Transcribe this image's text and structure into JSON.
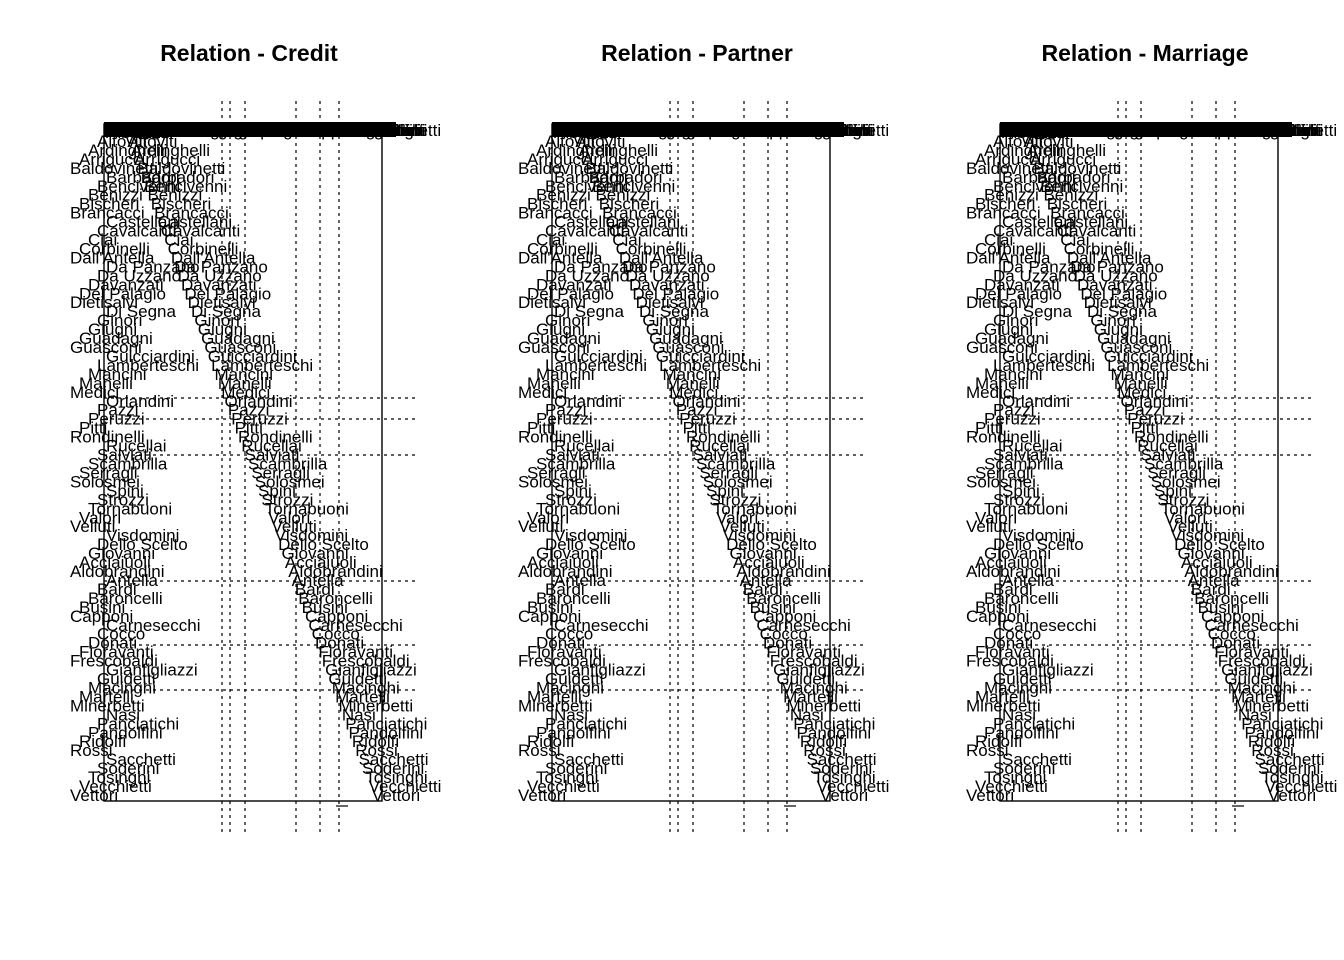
{
  "chart_data": [
    {
      "type": "matrix-plot",
      "title": "Relation -  Credit",
      "labels": [
        "Albizzi",
        "Altoviti",
        "Ardinghelli",
        "Arrigucci",
        "Baldovinetti",
        "Barbadori",
        "Bencivenni",
        "Benizzi",
        "Bischeri",
        "Brancacci",
        "Castellani",
        "Cavalcanti",
        "Ciai",
        "Corbinelli",
        "Dall'Antella",
        "Da Panzano",
        "Da Uzzano",
        "Davanzati",
        "Del Palagio",
        "Dietisalvi",
        "Di Segna",
        "Ginori",
        "Giugni",
        "Guadagni",
        "Guasconi",
        "Guicciardini",
        "Lamberteschi",
        "Mancini",
        "Manelli",
        "Medici",
        "Orlandini",
        "Pazzi",
        "Peruzzi",
        "Pitti",
        "Rondinelli",
        "Rucellai",
        "Salviati",
        "Scambrilla",
        "Serragli",
        "Solosmei",
        "Spini",
        "Strozzi",
        "Tornabuoni",
        "Valori",
        "Velluti",
        "Visdomini",
        "Dello Scelto",
        "Giovanni",
        "Acciaiuoli",
        "Aldobrandini",
        "Antella",
        "Bardi",
        "Baroncelli",
        "Busini",
        "Capponi",
        "Carnesecchi",
        "Cocco",
        "Donati",
        "Fioravanti",
        "Frescobaldi",
        "Gianfigliazzi",
        "Guidetti",
        "Macinghi",
        "Martelli",
        "Minerbetti",
        "Nasi",
        "Panciatichi",
        "Pandolfini",
        "Ridolfi",
        "Rossi",
        "Sacchetti",
        "Soderini",
        "Tosinghi",
        "Vecchietti",
        "Vettori"
      ]
    },
    {
      "type": "matrix-plot",
      "title": "Relation -  Partner",
      "labels": [
        "Albizzi",
        "Altoviti",
        "Ardinghelli",
        "Arrigucci",
        "Baldovinetti",
        "Barbadori",
        "Bencivenni",
        "Benizzi",
        "Bischeri",
        "Brancacci",
        "Castellani",
        "Cavalcanti",
        "Ciai",
        "Corbinelli",
        "Dall'Antella",
        "Da Panzano",
        "Da Uzzano",
        "Davanzati",
        "Del Palagio",
        "Dietisalvi",
        "Di Segna",
        "Ginori",
        "Giugni",
        "Guadagni",
        "Guasconi",
        "Guicciardini",
        "Lamberteschi",
        "Mancini",
        "Manelli",
        "Medici",
        "Orlandini",
        "Pazzi",
        "Peruzzi",
        "Pitti",
        "Rondinelli",
        "Rucellai",
        "Salviati",
        "Scambrilla",
        "Serragli",
        "Solosmei",
        "Spini",
        "Strozzi",
        "Tornabuoni",
        "Valori",
        "Velluti",
        "Visdomini",
        "Dello Scelto",
        "Giovanni",
        "Acciaiuoli",
        "Aldobrandini",
        "Antella",
        "Bardi",
        "Baroncelli",
        "Busini",
        "Capponi",
        "Carnesecchi",
        "Cocco",
        "Donati",
        "Fioravanti",
        "Frescobaldi",
        "Gianfigliazzi",
        "Guidetti",
        "Macinghi",
        "Martelli",
        "Minerbetti",
        "Nasi",
        "Panciatichi",
        "Pandolfini",
        "Ridolfi",
        "Rossi",
        "Sacchetti",
        "Soderini",
        "Tosinghi",
        "Vecchietti",
        "Vettori"
      ]
    },
    {
      "type": "matrix-plot",
      "title": "Relation -  Marriage",
      "labels": [
        "Albizzi",
        "Altoviti",
        "Ardinghelli",
        "Arrigucci",
        "Baldovinetti",
        "Barbadori",
        "Bencivenni",
        "Benizzi",
        "Bischeri",
        "Brancacci",
        "Castellani",
        "Cavalcanti",
        "Ciai",
        "Corbinelli",
        "Dall'Antella",
        "Da Panzano",
        "Da Uzzano",
        "Davanzati",
        "Del Palagio",
        "Dietisalvi",
        "Di Segna",
        "Ginori",
        "Giugni",
        "Guadagni",
        "Guasconi",
        "Guicciardini",
        "Lamberteschi",
        "Mancini",
        "Manelli",
        "Medici",
        "Orlandini",
        "Pazzi",
        "Peruzzi",
        "Pitti",
        "Rondinelli",
        "Rucellai",
        "Salviati",
        "Scambrilla",
        "Serragli",
        "Solosmei",
        "Spini",
        "Strozzi",
        "Tornabuoni",
        "Valori",
        "Velluti",
        "Visdomini",
        "Dello Scelto",
        "Giovanni",
        "Acciaiuoli",
        "Aldobrandini",
        "Antella",
        "Bardi",
        "Baroncelli",
        "Busini",
        "Capponi",
        "Carnesecchi",
        "Cocco",
        "Donati",
        "Fioravanti",
        "Frescobaldi",
        "Gianfigliazzi",
        "Guidetti",
        "Macinghi",
        "Martelli",
        "Minerbetti",
        "Nasi",
        "Panciatichi",
        "Pandolfini",
        "Ridolfi",
        "Rossi",
        "Sacchetti",
        "Soderini",
        "Tosinghi",
        "Vecchietti",
        "Vettori"
      ]
    }
  ]
}
